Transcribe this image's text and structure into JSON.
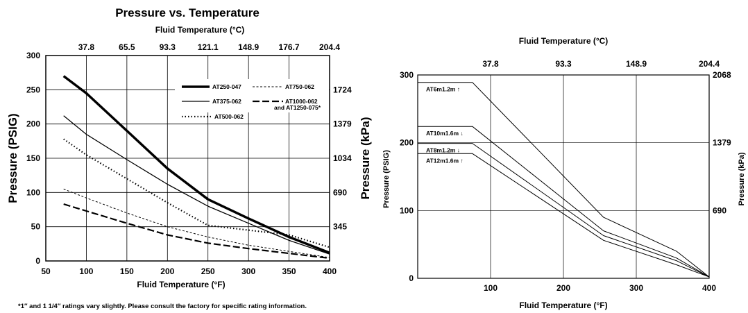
{
  "footnote": "*1″ and 1 1/4″ ratings vary slightly. Please consult the factory for specific rating information.",
  "chart_data": [
    {
      "type": "line",
      "title": "Pressure vs. Temperature",
      "top_axis_label": "Fluid Temperature (°C)",
      "top_ticks": [
        {
          "label": "37.8",
          "x": 100
        },
        {
          "label": "65.5",
          "x": 150
        },
        {
          "label": "93.3",
          "x": 200
        },
        {
          "label": "121.1",
          "x": 250
        },
        {
          "label": "148.9",
          "x": 300
        },
        {
          "label": "176.7",
          "x": 350
        },
        {
          "label": "204.4",
          "x": 400
        }
      ],
      "xlabel": "Fluid Temperature (°F)",
      "ylabel": "Pressure (PSIG)",
      "right_axis_label": "Pressure (kPa)",
      "right_ticks": [
        {
          "label": "1724",
          "y": 250
        },
        {
          "label": "1379",
          "y": 200
        },
        {
          "label": "1034",
          "y": 150
        },
        {
          "label": "690",
          "y": 100
        },
        {
          "label": "345",
          "y": 50
        }
      ],
      "xlim": [
        50,
        400
      ],
      "ylim": [
        0,
        300
      ],
      "x_ticks": [
        50,
        100,
        150,
        200,
        250,
        300,
        350,
        400
      ],
      "y_ticks": [
        0,
        50,
        100,
        150,
        200,
        250,
        300
      ],
      "grid": true,
      "legend_position": "top-right",
      "series": [
        {
          "name": "AT250-047",
          "style": "thick",
          "points": [
            [
              72,
              270
            ],
            [
              100,
              245
            ],
            [
              150,
              190
            ],
            [
              200,
              135
            ],
            [
              250,
              90
            ],
            [
              300,
              62
            ],
            [
              350,
              35
            ],
            [
              400,
              12
            ]
          ]
        },
        {
          "name": "AT750-062",
          "style": "dashed",
          "points": [
            [
              72,
              105
            ],
            [
              100,
              92
            ],
            [
              150,
              70
            ],
            [
              200,
              50
            ],
            [
              250,
              35
            ],
            [
              300,
              23
            ],
            [
              350,
              14
            ],
            [
              400,
              5
            ]
          ]
        },
        {
          "name": "AT375-062",
          "style": "solid",
          "points": [
            [
              72,
              212
            ],
            [
              100,
              185
            ],
            [
              150,
              148
            ],
            [
              200,
              112
            ],
            [
              250,
              80
            ],
            [
              300,
              55
            ],
            [
              350,
              30
            ],
            [
              400,
              10
            ]
          ]
        },
        {
          "name": "AT1000-062",
          "name_line2": "and AT1250-075*",
          "style": "longdash",
          "points": [
            [
              72,
              83
            ],
            [
              100,
              73
            ],
            [
              150,
              55
            ],
            [
              200,
              38
            ],
            [
              250,
              26
            ],
            [
              300,
              18
            ],
            [
              350,
              11
            ],
            [
              400,
              4
            ]
          ]
        },
        {
          "name": "AT500-062",
          "style": "dotted",
          "points": [
            [
              72,
              178
            ],
            [
              100,
              155
            ],
            [
              150,
              120
            ],
            [
              200,
              85
            ],
            [
              250,
              52
            ],
            [
              300,
              45
            ],
            [
              350,
              38
            ],
            [
              400,
              20
            ]
          ]
        }
      ]
    },
    {
      "type": "line",
      "top_axis_label": "Fluid Temperature (°C)",
      "top_ticks": [
        {
          "label": "37.8",
          "x": 100
        },
        {
          "label": "93.3",
          "x": 200
        },
        {
          "label": "148.9",
          "x": 300
        },
        {
          "label": "204.4",
          "x": 400
        }
      ],
      "xlabel": "Fluid Temperature (°F)",
      "ylabel": "Pressure (PSIG)",
      "right_axis_label": "Pressure (kPa)",
      "right_ticks": [
        {
          "label": "2068",
          "y": 300
        },
        {
          "label": "1379",
          "y": 200
        },
        {
          "label": "690",
          "y": 100
        }
      ],
      "xlim": [
        0,
        400
      ],
      "ylim": [
        0,
        300
      ],
      "x_ticks": [
        100,
        200,
        300,
        400
      ],
      "y_ticks": [
        0,
        100,
        200,
        300
      ],
      "grid": true,
      "series": [
        {
          "name": "AT6m1.2m ↑",
          "points": [
            [
              0,
              289
            ],
            [
              75,
              289
            ],
            [
              255,
              90
            ],
            [
              355,
              40
            ],
            [
              400,
              2
            ]
          ]
        },
        {
          "name": "AT10m1.6m ↓",
          "points": [
            [
              0,
              224
            ],
            [
              75,
              224
            ],
            [
              255,
              70
            ],
            [
              355,
              30
            ],
            [
              400,
              2
            ]
          ]
        },
        {
          "name": "AT8m1.2m ↓",
          "points": [
            [
              0,
              199
            ],
            [
              75,
              199
            ],
            [
              255,
              63
            ],
            [
              355,
              26
            ],
            [
              400,
              2
            ]
          ]
        },
        {
          "name": "AT12m1.6m ↑",
          "points": [
            [
              0,
              184
            ],
            [
              75,
              184
            ],
            [
              255,
              56
            ],
            [
              355,
              20
            ],
            [
              400,
              2
            ]
          ]
        }
      ]
    }
  ]
}
